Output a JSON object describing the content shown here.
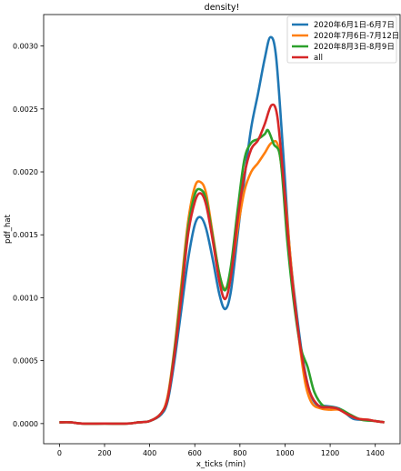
{
  "chart_data": {
    "type": "line",
    "title": "density!",
    "xlabel": "x_ticks (min)",
    "ylabel": "pdf_hat",
    "xlim": [
      -70,
      1510
    ],
    "ylim": [
      -0.00016,
      0.00325
    ],
    "xticks": [
      0,
      200,
      400,
      600,
      800,
      1000,
      1200,
      1400
    ],
    "yticks": [
      0.0,
      0.0005,
      0.001,
      0.0015,
      0.002,
      0.0025,
      0.003
    ],
    "ytick_labels": [
      "0.0000",
      "0.0005",
      "0.0010",
      "0.0015",
      "0.0020",
      "0.0025",
      "0.0030"
    ],
    "grid": false,
    "legend_position": "top-right",
    "series": [
      {
        "name": "2020年6月1日-6月7日",
        "color": "#1f77b4",
        "points": [
          [
            0,
            1e-05
          ],
          [
            50,
            1e-05
          ],
          [
            100,
            0.0
          ],
          [
            200,
            0.0
          ],
          [
            300,
            0.0
          ],
          [
            350,
            1e-05
          ],
          [
            400,
            2e-05
          ],
          [
            450,
            7e-05
          ],
          [
            480,
            0.00018
          ],
          [
            510,
            0.0005
          ],
          [
            540,
            0.0009
          ],
          [
            570,
            0.0013
          ],
          [
            600,
            0.00158
          ],
          [
            625,
            0.00164
          ],
          [
            650,
            0.00155
          ],
          [
            680,
            0.0013
          ],
          [
            710,
            0.00102
          ],
          [
            735,
            0.00091
          ],
          [
            760,
            0.00105
          ],
          [
            790,
            0.0015
          ],
          [
            820,
            0.00195
          ],
          [
            850,
            0.00235
          ],
          [
            880,
            0.00262
          ],
          [
            910,
            0.0029
          ],
          [
            935,
            0.00307
          ],
          [
            960,
            0.00292
          ],
          [
            990,
            0.0022
          ],
          [
            1020,
            0.0014
          ],
          [
            1050,
            0.0009
          ],
          [
            1080,
            0.0005
          ],
          [
            1110,
            0.00025
          ],
          [
            1140,
            0.00015
          ],
          [
            1180,
            0.00014
          ],
          [
            1220,
            0.00013
          ],
          [
            1250,
            0.00011
          ],
          [
            1300,
            4e-05
          ],
          [
            1350,
            3e-05
          ],
          [
            1400,
            2e-05
          ],
          [
            1440,
            1e-05
          ]
        ]
      },
      {
        "name": "2020年7月6日-7月12日",
        "color": "#ff7f0e",
        "points": [
          [
            0,
            1e-05
          ],
          [
            50,
            1e-05
          ],
          [
            100,
            0.0
          ],
          [
            200,
            0.0
          ],
          [
            300,
            0.0
          ],
          [
            350,
            1e-05
          ],
          [
            400,
            2e-05
          ],
          [
            450,
            8e-05
          ],
          [
            480,
            0.00022
          ],
          [
            510,
            0.0006
          ],
          [
            540,
            0.0011
          ],
          [
            570,
            0.0016
          ],
          [
            600,
            0.00188
          ],
          [
            625,
            0.00192
          ],
          [
            650,
            0.00183
          ],
          [
            680,
            0.0015
          ],
          [
            710,
            0.00118
          ],
          [
            735,
            0.00107
          ],
          [
            760,
            0.0012
          ],
          [
            790,
            0.00155
          ],
          [
            820,
            0.00185
          ],
          [
            850,
            0.002
          ],
          [
            880,
            0.00207
          ],
          [
            910,
            0.00215
          ],
          [
            940,
            0.00223
          ],
          [
            970,
            0.0022
          ],
          [
            1000,
            0.0018
          ],
          [
            1030,
            0.0012
          ],
          [
            1060,
            0.0007
          ],
          [
            1090,
            0.00032
          ],
          [
            1120,
            0.00016
          ],
          [
            1160,
            0.00012
          ],
          [
            1200,
            0.00011
          ],
          [
            1240,
            0.00011
          ],
          [
            1280,
            7e-05
          ],
          [
            1320,
            4e-05
          ],
          [
            1370,
            3e-05
          ],
          [
            1400,
            2e-05
          ],
          [
            1440,
            1e-05
          ]
        ]
      },
      {
        "name": "2020年8月3日-8月9日",
        "color": "#2ca02c",
        "points": [
          [
            0,
            1e-05
          ],
          [
            50,
            1e-05
          ],
          [
            100,
            0.0
          ],
          [
            200,
            0.0
          ],
          [
            300,
            0.0
          ],
          [
            350,
            1e-05
          ],
          [
            400,
            2e-05
          ],
          [
            450,
            8e-05
          ],
          [
            480,
            0.0002
          ],
          [
            510,
            0.00058
          ],
          [
            540,
            0.00105
          ],
          [
            570,
            0.00155
          ],
          [
            600,
            0.00182
          ],
          [
            625,
            0.00186
          ],
          [
            650,
            0.00178
          ],
          [
            680,
            0.00148
          ],
          [
            710,
            0.00118
          ],
          [
            735,
            0.00106
          ],
          [
            760,
            0.00125
          ],
          [
            790,
            0.0017
          ],
          [
            820,
            0.0021
          ],
          [
            850,
            0.00223
          ],
          [
            880,
            0.00226
          ],
          [
            910,
            0.0023
          ],
          [
            925,
            0.00233
          ],
          [
            950,
            0.00222
          ],
          [
            980,
            0.0021
          ],
          [
            1010,
            0.00145
          ],
          [
            1040,
            0.00095
          ],
          [
            1070,
            0.0006
          ],
          [
            1100,
            0.00045
          ],
          [
            1130,
            0.00025
          ],
          [
            1170,
            0.00014
          ],
          [
            1210,
            0.00013
          ],
          [
            1250,
            0.00011
          ],
          [
            1290,
            7e-05
          ],
          [
            1340,
            3e-05
          ],
          [
            1400,
            2e-05
          ],
          [
            1440,
            1e-05
          ]
        ]
      },
      {
        "name": "all",
        "color": "#d62728",
        "points": [
          [
            0,
            1e-05
          ],
          [
            50,
            1e-05
          ],
          [
            100,
            0.0
          ],
          [
            200,
            0.0
          ],
          [
            300,
            0.0
          ],
          [
            350,
            1e-05
          ],
          [
            400,
            2e-05
          ],
          [
            450,
            8e-05
          ],
          [
            480,
            0.0002
          ],
          [
            510,
            0.00055
          ],
          [
            540,
            0.001
          ],
          [
            570,
            0.0015
          ],
          [
            600,
            0.00176
          ],
          [
            625,
            0.00183
          ],
          [
            650,
            0.00174
          ],
          [
            680,
            0.00145
          ],
          [
            710,
            0.00112
          ],
          [
            735,
            0.00099
          ],
          [
            760,
            0.00117
          ],
          [
            790,
            0.00162
          ],
          [
            820,
            0.00198
          ],
          [
            850,
            0.00218
          ],
          [
            880,
            0.00225
          ],
          [
            910,
            0.00238
          ],
          [
            940,
            0.00253
          ],
          [
            965,
            0.00245
          ],
          [
            990,
            0.002
          ],
          [
            1020,
            0.00135
          ],
          [
            1050,
            0.00085
          ],
          [
            1080,
            0.00048
          ],
          [
            1110,
            0.00025
          ],
          [
            1150,
            0.00014
          ],
          [
            1190,
            0.00013
          ],
          [
            1230,
            0.00012
          ],
          [
            1270,
            8e-05
          ],
          [
            1320,
            4e-05
          ],
          [
            1370,
            3e-05
          ],
          [
            1400,
            2e-05
          ],
          [
            1440,
            1e-05
          ]
        ]
      }
    ]
  }
}
